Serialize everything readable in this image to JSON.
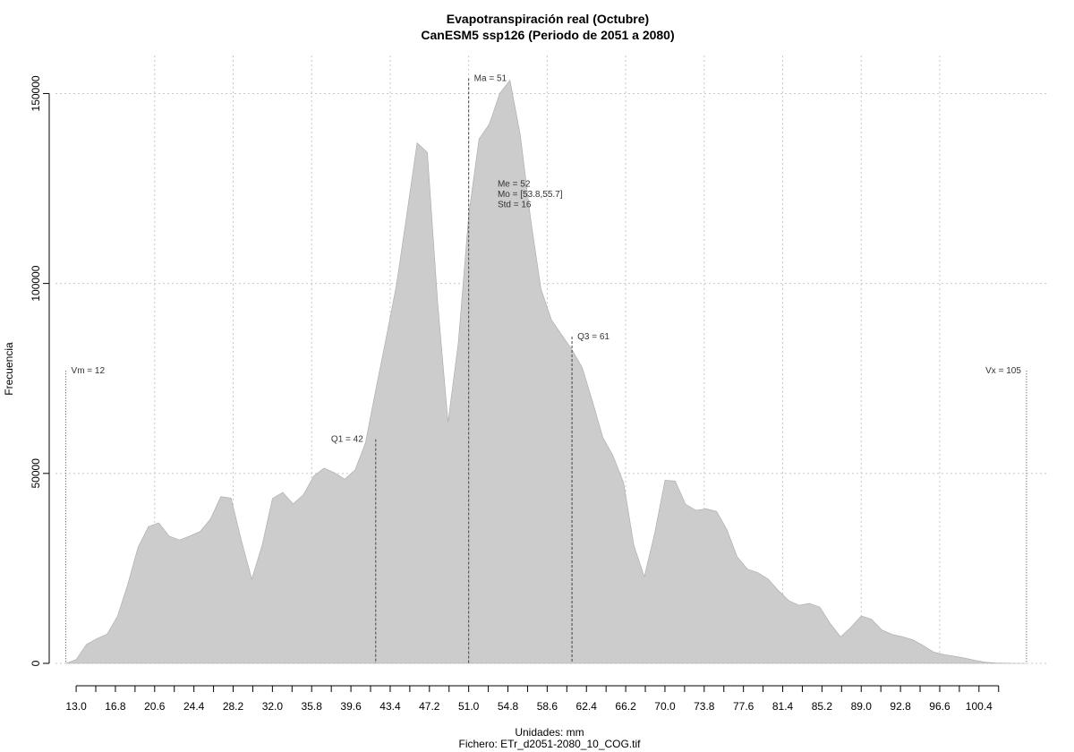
{
  "chart_data": {
    "type": "area",
    "title": "Evapotranspiración real (Octubre)",
    "subtitle": "CanESM5 ssp126 (Periodo de 2051 a 2080)",
    "xlabel": "Unidades: mm",
    "caption": "Fichero: ETr_d2051-2080_10_COG.tif",
    "ylabel": "Frecuencia",
    "xlim": [
      11,
      107
    ],
    "ylim": [
      0,
      160000
    ],
    "grid": true,
    "x_tick_labels": [
      "13.0",
      "16.8",
      "20.6",
      "24.4",
      "28.2",
      "32.0",
      "35.8",
      "39.6",
      "43.4",
      "47.2",
      "51.0",
      "54.8",
      "58.6",
      "62.4",
      "66.2",
      "70.0",
      "73.8",
      "77.6",
      "81.4",
      "85.2",
      "89.0",
      "92.8",
      "96.6",
      "100.4"
    ],
    "y_ticks": [
      0,
      50000,
      100000,
      150000
    ],
    "y_tick_labels": [
      "0",
      "50000",
      "100000",
      "150000"
    ],
    "series": [
      {
        "x": [
          12,
          13,
          14,
          15,
          16,
          17,
          18,
          19,
          20,
          21,
          22,
          23,
          24,
          25,
          26,
          27,
          28,
          29,
          30,
          31,
          32,
          33,
          34,
          35,
          36,
          37,
          38,
          39,
          40,
          41,
          42,
          43,
          44,
          45,
          46,
          47,
          48,
          49,
          50,
          51,
          52,
          53,
          54,
          55,
          56,
          57,
          58,
          59,
          60,
          61,
          62,
          63,
          64,
          65,
          66,
          67,
          68,
          69,
          70,
          71,
          72,
          73,
          74,
          75,
          76,
          77,
          78,
          79,
          80,
          81,
          82,
          83,
          84,
          85,
          86,
          87,
          88,
          89,
          90,
          91,
          92,
          93,
          94,
          95,
          96,
          97,
          98,
          99,
          100,
          101,
          102,
          103,
          104,
          105
        ],
        "y": [
          0,
          1000,
          5000,
          6500,
          7700,
          12400,
          20900,
          30600,
          36000,
          37000,
          33500,
          32500,
          33500,
          34700,
          38000,
          43900,
          43500,
          32300,
          22200,
          31000,
          43400,
          45000,
          42000,
          44400,
          49300,
          51400,
          50200,
          48500,
          50900,
          58000,
          72000,
          85500,
          99500,
          118000,
          137000,
          134500,
          95000,
          63500,
          84500,
          118000,
          138000,
          142000,
          150000,
          153500,
          139000,
          117000,
          98500,
          90500,
          86500,
          82600,
          77800,
          68800,
          59400,
          54500,
          47500,
          31000,
          22800,
          34200,
          48200,
          48000,
          41900,
          40300,
          40700,
          40000,
          35200,
          28000,
          24800,
          23900,
          22200,
          19100,
          16500,
          15300,
          15800,
          14800,
          10500,
          7000,
          9500,
          12500,
          11600,
          8800,
          7600,
          7000,
          6200,
          4700,
          3000,
          2300,
          1900,
          1400,
          800,
          300,
          100,
          50,
          10,
          0
        ]
      }
    ],
    "annotations": [
      {
        "label": "Vm = 12",
        "x": 12,
        "y": 77000
      },
      {
        "label": "Q1 = 42",
        "x": 42,
        "y": 59000
      },
      {
        "label": "Ma = 51",
        "x": 51,
        "y": 154000
      },
      {
        "label": "Q3 = 61",
        "x": 61,
        "y": 86000
      },
      {
        "label": "Vx = 105",
        "x": 105,
        "y": 77000
      }
    ],
    "stats": [
      "Me = 52",
      "Mo = [53.8,55.7]",
      "Std = 16"
    ],
    "stats_anchor": {
      "x": 53.8,
      "y": 125500
    },
    "fill_color": "#cccccc",
    "grid_color": "#c8c8c8"
  }
}
